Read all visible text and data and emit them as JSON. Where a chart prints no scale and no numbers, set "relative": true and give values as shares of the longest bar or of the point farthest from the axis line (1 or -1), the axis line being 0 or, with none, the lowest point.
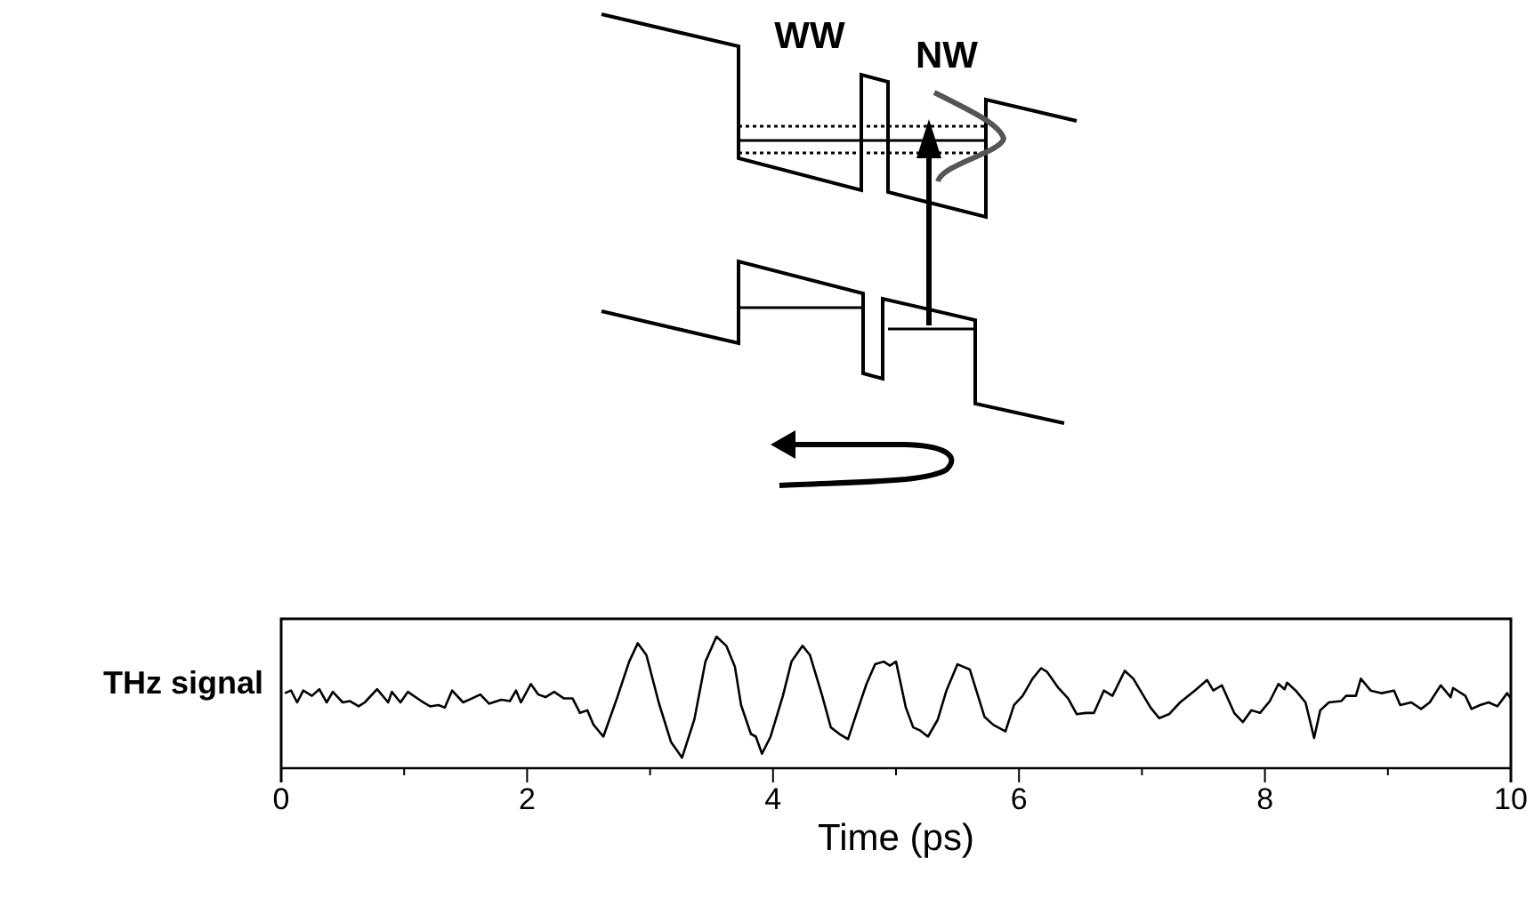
{
  "chart_data": {
    "type": "line",
    "relative": true,
    "xlabel": "Time (ps)",
    "ylabel": "THz signal",
    "annotations": [
      "WW",
      "NW"
    ],
    "xlim": [
      0,
      10
    ],
    "xticks": [
      0,
      {
        "value": 1,
        "label": null
      },
      2,
      {
        "value": 3,
        "label": null
      },
      4,
      {
        "value": 5,
        "label": null
      },
      6,
      {
        "value": 7,
        "label": null
      },
      8,
      {
        "value": 9,
        "label": null
      },
      10
    ],
    "marker": "none",
    "line_style": "solid",
    "series": [
      {
        "color": "#000000",
        "x": [
          0.03,
          0.08,
          0.13,
          0.18,
          0.25,
          0.31,
          0.37,
          0.42,
          0.5,
          0.56,
          0.63,
          0.68,
          0.78,
          0.87,
          0.9,
          0.97,
          1.03,
          1.14,
          1.21,
          1.28,
          1.33,
          1.39,
          1.48,
          1.55,
          1.62,
          1.69,
          1.79,
          1.86,
          1.91,
          1.95,
          2.03,
          2.09,
          2.15,
          2.22,
          2.3,
          2.37,
          2.43,
          2.49,
          2.54,
          2.62,
          2.73,
          2.83,
          2.9,
          2.97,
          3.07,
          3.17,
          3.26,
          3.36,
          3.45,
          3.54,
          3.62,
          3.69,
          3.74,
          3.82,
          3.86,
          3.91,
          3.98,
          4.08,
          4.15,
          4.24,
          4.3,
          4.4,
          4.47,
          4.54,
          4.61,
          4.68,
          4.76,
          4.83,
          4.9,
          4.95,
          5.0,
          5.08,
          5.14,
          5.19,
          5.26,
          5.34,
          5.41,
          5.5,
          5.6,
          5.72,
          5.79,
          5.89,
          5.96,
          6.03,
          6.11,
          6.18,
          6.23,
          6.32,
          6.4,
          6.47,
          6.54,
          6.61,
          6.69,
          6.76,
          6.86,
          6.93,
          7.0,
          7.07,
          7.14,
          7.22,
          7.31,
          7.43,
          7.53,
          7.58,
          7.65,
          7.75,
          7.82,
          7.89,
          7.96,
          8.04,
          8.11,
          8.16,
          8.18,
          8.25,
          8.33,
          8.4,
          8.45,
          8.52,
          8.62,
          8.66,
          8.74,
          8.78,
          8.86,
          8.95,
          9.05,
          9.1,
          9.19,
          9.27,
          9.34,
          9.43,
          9.51,
          9.53,
          9.63,
          9.68,
          9.75,
          9.82,
          9.89,
          9.97,
          10.0
        ],
        "values": [
          0.57,
          0.59,
          0.5,
          0.59,
          0.55,
          0.6,
          0.5,
          0.58,
          0.5,
          0.51,
          0.47,
          0.5,
          0.6,
          0.5,
          0.58,
          0.5,
          0.58,
          0.51,
          0.47,
          0.48,
          0.46,
          0.59,
          0.5,
          0.53,
          0.56,
          0.49,
          0.52,
          0.51,
          0.59,
          0.5,
          0.64,
          0.56,
          0.54,
          0.58,
          0.53,
          0.53,
          0.42,
          0.44,
          0.33,
          0.24,
          0.53,
          0.81,
          0.95,
          0.86,
          0.5,
          0.2,
          0.08,
          0.37,
          0.81,
          1.0,
          0.93,
          0.77,
          0.48,
          0.26,
          0.24,
          0.11,
          0.24,
          0.55,
          0.81,
          0.93,
          0.86,
          0.55,
          0.31,
          0.26,
          0.22,
          0.42,
          0.64,
          0.79,
          0.81,
          0.78,
          0.81,
          0.46,
          0.31,
          0.29,
          0.24,
          0.37,
          0.59,
          0.79,
          0.75,
          0.39,
          0.33,
          0.28,
          0.48,
          0.55,
          0.68,
          0.76,
          0.73,
          0.61,
          0.53,
          0.41,
          0.42,
          0.42,
          0.59,
          0.55,
          0.74,
          0.68,
          0.57,
          0.46,
          0.38,
          0.41,
          0.5,
          0.59,
          0.67,
          0.59,
          0.63,
          0.42,
          0.35,
          0.44,
          0.42,
          0.51,
          0.64,
          0.6,
          0.65,
          0.59,
          0.5,
          0.23,
          0.44,
          0.5,
          0.51,
          0.55,
          0.55,
          0.68,
          0.59,
          0.57,
          0.59,
          0.48,
          0.5,
          0.45,
          0.5,
          0.63,
          0.54,
          0.61,
          0.55,
          0.45,
          0.48,
          0.5,
          0.47,
          0.57,
          0.53
        ]
      }
    ]
  }
}
